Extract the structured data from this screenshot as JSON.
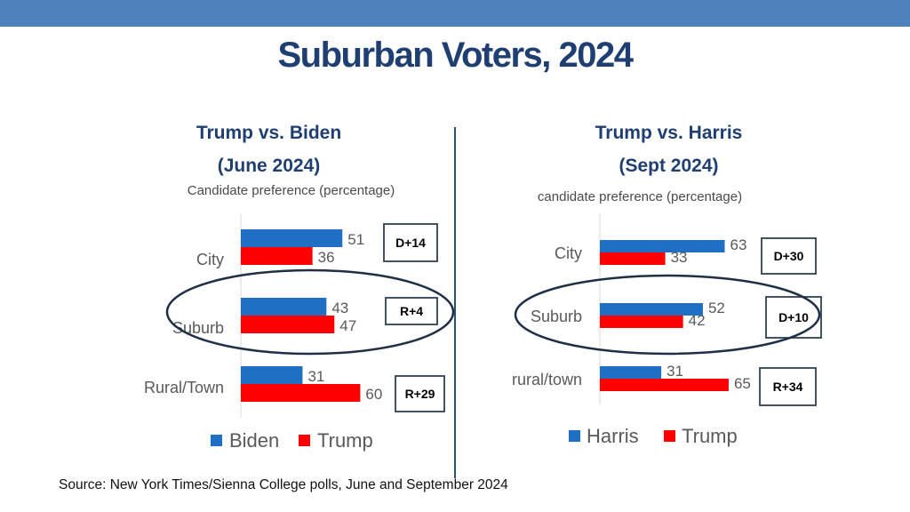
{
  "title": "Suburban Voters, 2024",
  "footer": "Source: New York Times/Sienna College polls, June and September 2024",
  "colors": {
    "blue": "#1f6fc5",
    "red": "#ff0000",
    "header": "#4f81bd",
    "title": "#1f3f72"
  },
  "chart_data": [
    {
      "type": "bar",
      "orientation": "horizontal",
      "title": "Trump vs. Biden",
      "subtitle": "(June 2024)",
      "caption": "Candidate preference (percentage)",
      "categories": [
        "City",
        "Suburb",
        "Rural/Town"
      ],
      "series": [
        {
          "name": "Biden",
          "color": "#1f6fc5",
          "values": [
            51,
            43,
            31
          ]
        },
        {
          "name": "Trump",
          "color": "#ff0000",
          "values": [
            36,
            47,
            60
          ]
        }
      ],
      "margins": [
        "D+14",
        "R+4",
        "R+29"
      ],
      "highlight": "Suburb",
      "xlim": [
        0,
        70
      ]
    },
    {
      "type": "bar",
      "orientation": "horizontal",
      "title": "Trump vs. Harris",
      "subtitle": "(Sept 2024)",
      "caption": "candidate preference (percentage)",
      "categories": [
        "City",
        "Suburb",
        "rural/town"
      ],
      "series": [
        {
          "name": "Harris",
          "color": "#1f6fc5",
          "values": [
            63,
            52,
            31
          ]
        },
        {
          "name": "Trump",
          "color": "#ff0000",
          "values": [
            33,
            42,
            65
          ]
        }
      ],
      "margins": [
        "D+30",
        "D+10",
        "R+34"
      ],
      "highlight": "Suburb",
      "xlim": [
        0,
        70
      ]
    }
  ]
}
